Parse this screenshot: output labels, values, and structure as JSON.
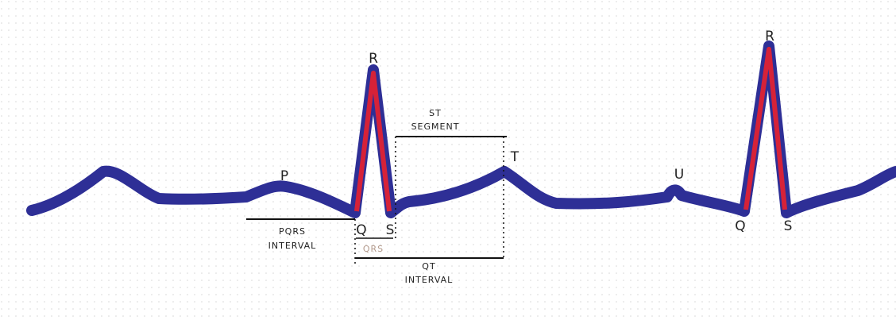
{
  "labels": [
    "R",
    "P",
    "Q",
    "S",
    "T",
    "U",
    "R",
    "Q",
    "S",
    "QRS"
  ],
  "annotations": [
    [
      "ST",
      "SEGMENT"
    ],
    [
      "PQRS",
      "INTERVAL"
    ],
    [
      "QT",
      "INTERVAL"
    ]
  ]
}
